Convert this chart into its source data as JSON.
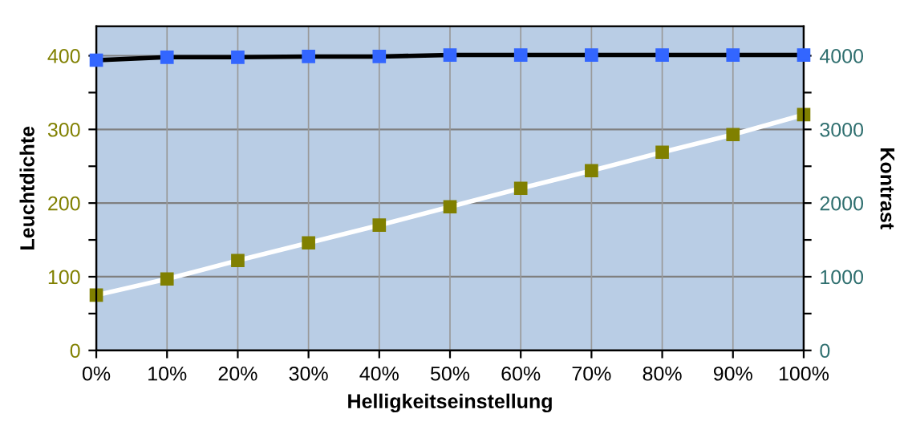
{
  "chart_data": {
    "type": "line",
    "xlabel": "Helligkeitseinstellung",
    "ylabel": "Leuchtdichte",
    "y2label": "Kontrast",
    "x": [
      0,
      10,
      20,
      30,
      40,
      50,
      60,
      70,
      80,
      90,
      100
    ],
    "xlim": [
      0,
      100
    ],
    "xticks": [
      {
        "value": 0,
        "label": "0%"
      },
      {
        "value": 10,
        "label": "10%"
      },
      {
        "value": 20,
        "label": "20%"
      },
      {
        "value": 30,
        "label": "30%"
      },
      {
        "value": 40,
        "label": "40%"
      },
      {
        "value": 50,
        "label": "50%"
      },
      {
        "value": 60,
        "label": "60%"
      },
      {
        "value": 70,
        "label": "70%"
      },
      {
        "value": 80,
        "label": "80%"
      },
      {
        "value": 90,
        "label": "90%"
      },
      {
        "value": 100,
        "label": "100%"
      }
    ],
    "ylim": [
      0,
      440
    ],
    "yticks": [
      0,
      {
        "value": 50,
        "label": null
      },
      100,
      {
        "value": 150,
        "label": null
      },
      200,
      {
        "value": 250,
        "label": null
      },
      300,
      {
        "value": 350,
        "label": null
      },
      400
    ],
    "y2lim": [
      0,
      4400
    ],
    "y2ticks": [
      0,
      {
        "value": 500,
        "label": null
      },
      1000,
      {
        "value": 1500,
        "label": null
      },
      2000,
      {
        "value": 2500,
        "label": null
      },
      3000,
      {
        "value": 3500,
        "label": null
      },
      4000
    ],
    "grid": true,
    "marker": "square",
    "legend": false,
    "series": [
      {
        "color": "#808000",
        "values": [
          75,
          97,
          122,
          146,
          170,
          195,
          220,
          244,
          269,
          293,
          320
        ]
      },
      {
        "color": "#3366ff",
        "axis": "y2",
        "values": [
          3940,
          3980,
          3980,
          3990,
          3990,
          4010,
          4010,
          4010,
          4010,
          4010,
          4010
        ]
      }
    ]
  }
}
